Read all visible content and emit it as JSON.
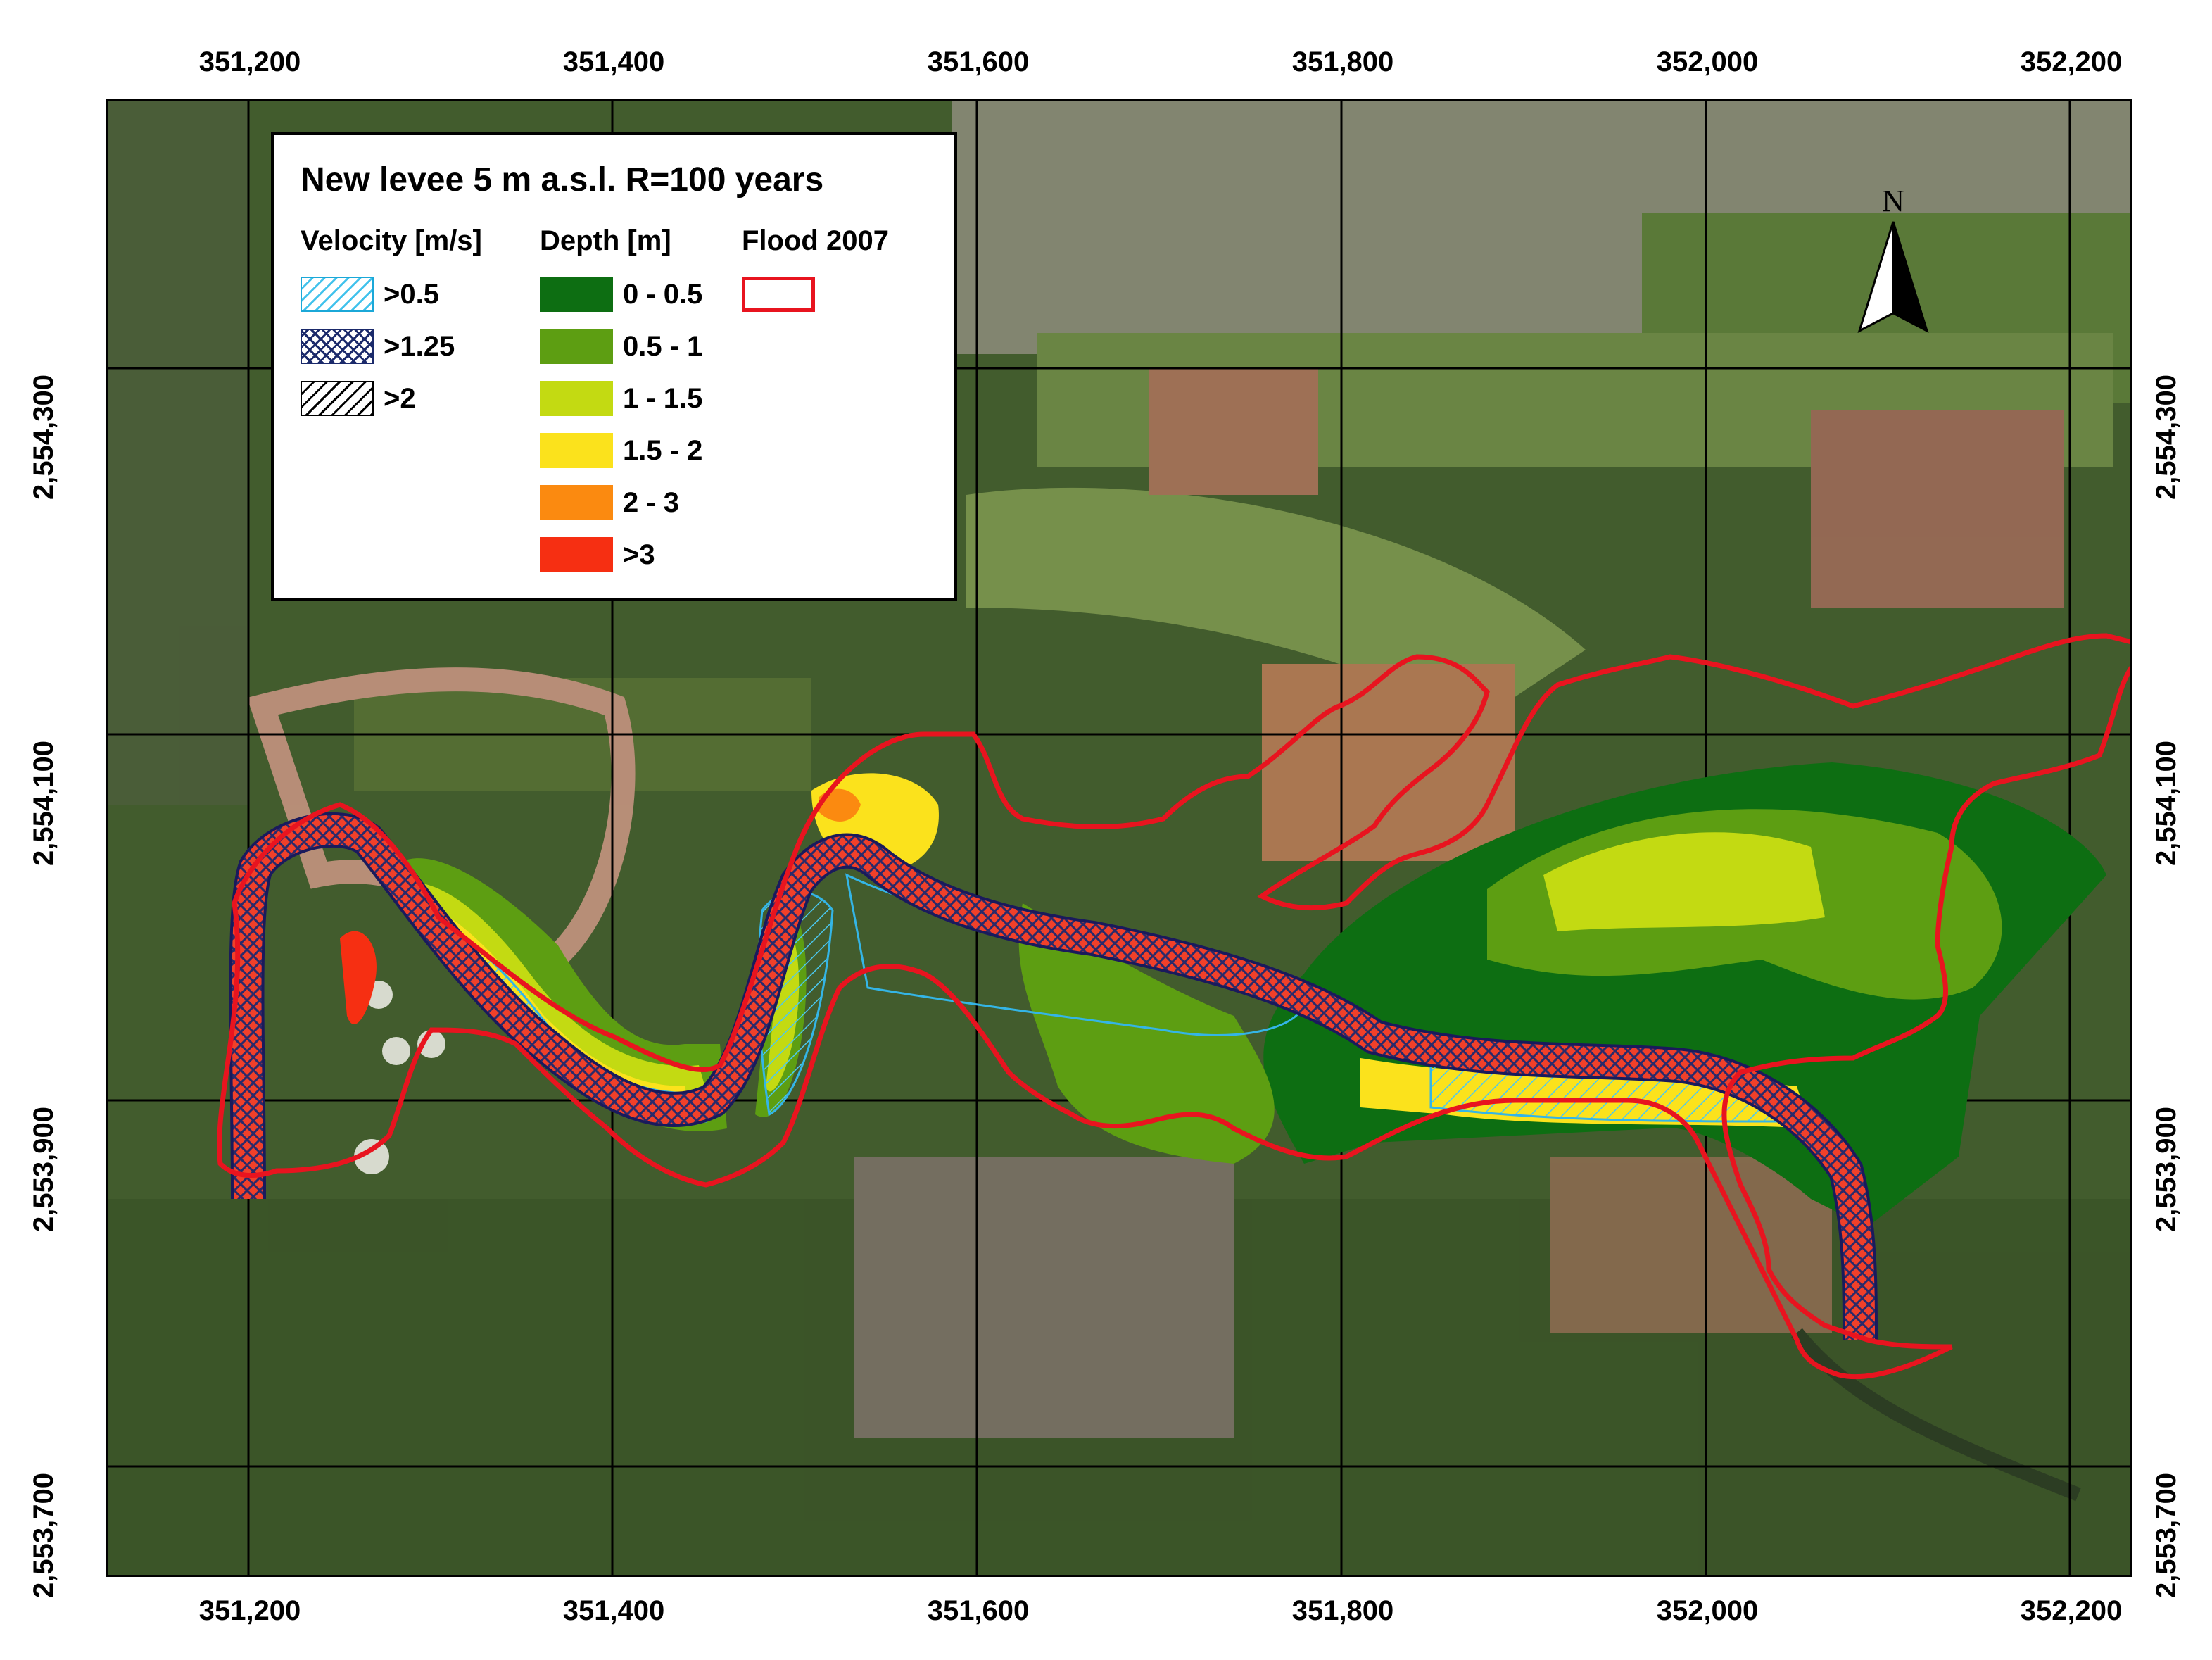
{
  "map": {
    "title": "New levee 5 m a.s.l. R=100 years",
    "x_ticks": [
      "351,200",
      "351,400",
      "351,600",
      "351,800",
      "352,000",
      "352,200"
    ],
    "y_ticks": [
      "2,554,300",
      "2,554,100",
      "2,553,900",
      "2,553,700"
    ],
    "north_label": "N"
  },
  "legend": {
    "velocity_heading": "Velocity [m/s]",
    "depth_heading": "Depth [m]",
    "flood_heading": "Flood 2007",
    "velocity_items": [
      ">0.5",
      ">1.25",
      ">2"
    ],
    "depth_items": [
      {
        "label": "0 - 0.5",
        "color": "#0d6e12"
      },
      {
        "label": "0.5 - 1",
        "color": "#5d9e12"
      },
      {
        "label": "1 - 1.5",
        "color": "#c3da12"
      },
      {
        "label": "1.5 - 2",
        "color": "#fbe21c"
      },
      {
        "label": "2 - 3",
        "color": "#fb8a10"
      },
      {
        "label": ">3",
        "color": "#f62f12"
      }
    ],
    "flood_color": "#e8141f"
  }
}
